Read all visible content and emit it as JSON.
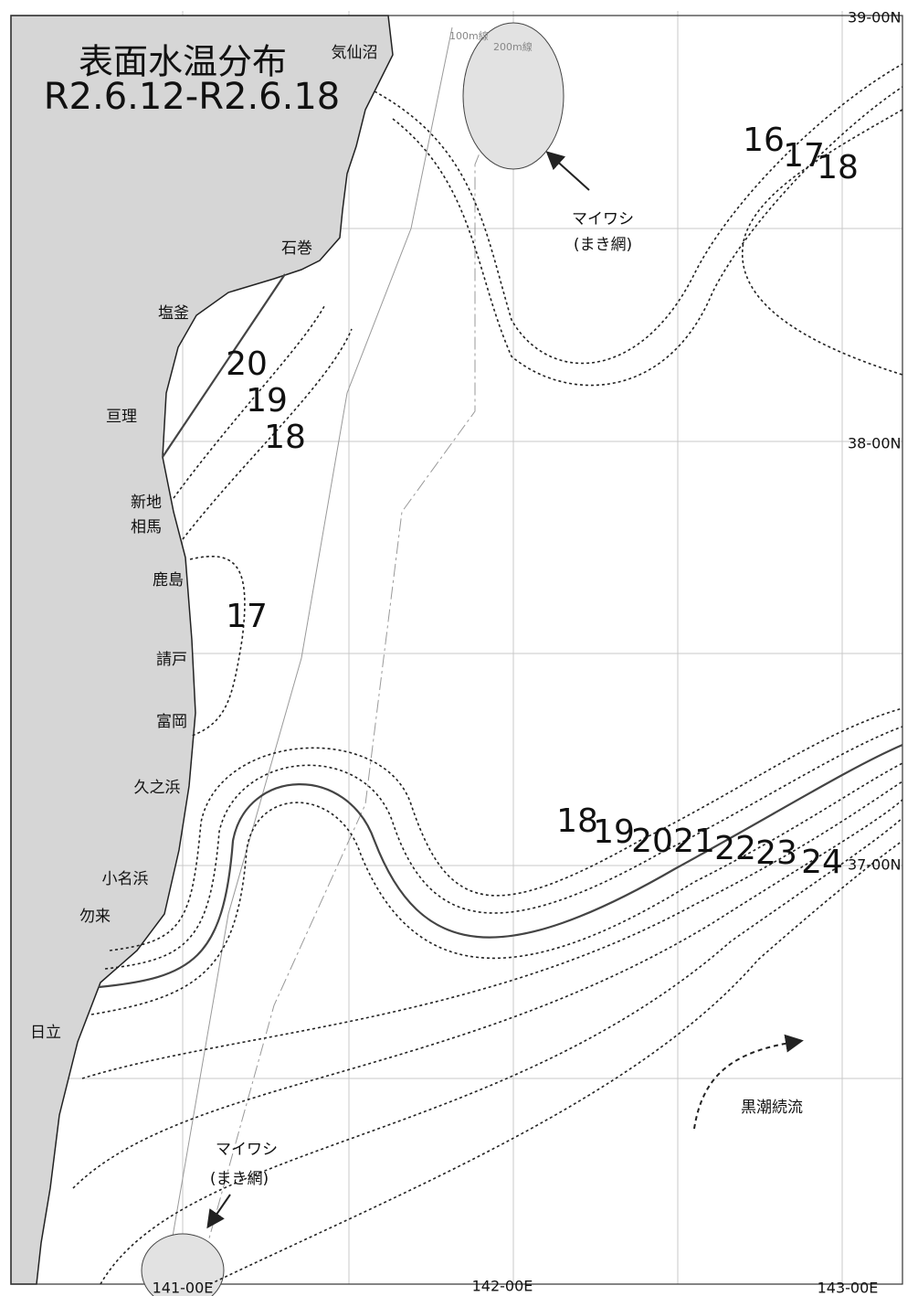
{
  "title": [
    "表面水温分布",
    "R2.6.12-R2.6.18"
  ],
  "places": [
    "気仙沼",
    "石巻",
    "塩釜",
    "亘理",
    "新地",
    "相馬",
    "鹿島",
    "請戸",
    "富岡",
    "久之浜",
    "小名浜",
    "勿来",
    "日立"
  ],
  "contour_labels": [
    20,
    19,
    18,
    17,
    16,
    17,
    18,
    18,
    19,
    20,
    21,
    22,
    23,
    24
  ],
  "depth_labels": [
    "100m線",
    "200m線"
  ],
  "longitudes": [
    "141-00E",
    "142-00E",
    "143-00E"
  ],
  "latitudes": [
    "39-00N",
    "38-00N",
    "37-00N"
  ],
  "annotations": {
    "sardine_north": [
      "マイワシ",
      "(まき網)"
    ],
    "sardine_south": [
      "マイワシ",
      "(まき網)"
    ],
    "current": "黒潮続流"
  }
}
